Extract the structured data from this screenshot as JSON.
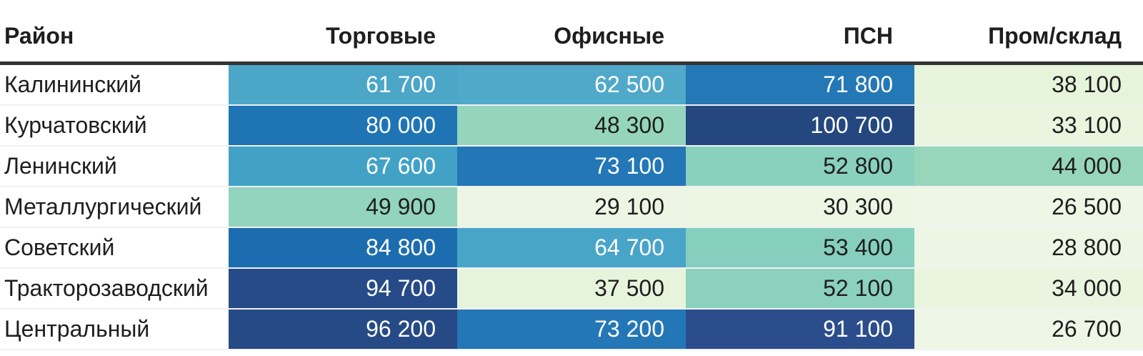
{
  "table": {
    "row_header_label": "Район",
    "column_labels": [
      "Торговые",
      "Офисные",
      "ПСН",
      "Пром/склад"
    ],
    "rows": [
      {
        "district": "Калининский",
        "cells": [
          {
            "text": "61 700",
            "bg": "#4BA6C8",
            "fg": "#FFFFFF"
          },
          {
            "text": "62 500",
            "bg": "#50A9C9",
            "fg": "#FFFFFF"
          },
          {
            "text": "71 800",
            "bg": "#2478B6",
            "fg": "#FFFFFF"
          },
          {
            "text": "38 100",
            "bg": "#E7F4DC",
            "fg": "#1E1E1E"
          }
        ]
      },
      {
        "district": "Курчатовский",
        "cells": [
          {
            "text": "80 000",
            "bg": "#1F74B4",
            "fg": "#FFFFFF"
          },
          {
            "text": "48 300",
            "bg": "#95D5BD",
            "fg": "#1E1E1E"
          },
          {
            "text": "100 700",
            "bg": "#24477F",
            "fg": "#FFFFFF"
          },
          {
            "text": "33 100",
            "bg": "#EAF5E0",
            "fg": "#1E1E1E"
          }
        ]
      },
      {
        "district": "Ленинский",
        "cells": [
          {
            "text": "67 600",
            "bg": "#42A2C6",
            "fg": "#FFFFFF"
          },
          {
            "text": "73 100",
            "bg": "#2377B6",
            "fg": "#FFFFFF"
          },
          {
            "text": "52 800",
            "bg": "#89D0BD",
            "fg": "#1E1E1E"
          },
          {
            "text": "44 000",
            "bg": "#98D6BC",
            "fg": "#1E1E1E"
          }
        ]
      },
      {
        "district": "Металлургический",
        "cells": [
          {
            "text": "49 900",
            "bg": "#92D4BE",
            "fg": "#1E1E1E"
          },
          {
            "text": "29 100",
            "bg": "#EDF6E4",
            "fg": "#1E1E1E"
          },
          {
            "text": "30 300",
            "bg": "#ECF6E2",
            "fg": "#1E1E1E"
          },
          {
            "text": "26 500",
            "bg": "#EEF7E6",
            "fg": "#1E1E1E"
          }
        ]
      },
      {
        "district": "Советский",
        "cells": [
          {
            "text": "84 800",
            "bg": "#1C6DAF",
            "fg": "#FFFFFF"
          },
          {
            "text": "64 700",
            "bg": "#48A5C8",
            "fg": "#FFFFFF"
          },
          {
            "text": "53 400",
            "bg": "#86CFBE",
            "fg": "#1E1E1E"
          },
          {
            "text": "28 800",
            "bg": "#EDF6E4",
            "fg": "#1E1E1E"
          }
        ]
      },
      {
        "district": "Тракторозаводский",
        "cells": [
          {
            "text": "94 700",
            "bg": "#274B88",
            "fg": "#FFFFFF"
          },
          {
            "text": "37 500",
            "bg": "#E7F4DC",
            "fg": "#1E1E1E"
          },
          {
            "text": "52 100",
            "bg": "#8BD1BD",
            "fg": "#1E1E1E"
          },
          {
            "text": "34 000",
            "bg": "#E9F5DF",
            "fg": "#1E1E1E"
          }
        ]
      },
      {
        "district": "Центральный",
        "cells": [
          {
            "text": "96 200",
            "bg": "#264A85",
            "fg": "#FFFFFF"
          },
          {
            "text": "73 200",
            "bg": "#2377B6",
            "fg": "#FFFFFF"
          },
          {
            "text": "91 100",
            "bg": "#2B4D8C",
            "fg": "#FFFFFF"
          },
          {
            "text": "26 700",
            "bg": "#EEF7E6",
            "fg": "#1E1E1E"
          }
        ]
      }
    ]
  },
  "style": {
    "header_border_color": "#343434",
    "row_divider_color": "#EFF1F2",
    "dark_text_color": "#1E1E1E",
    "light_text_color": "#FFFFFF",
    "colormap_low": "#EEF7E6",
    "colormap_mid": "#8FD2BD",
    "colormap_high": "#24477F"
  },
  "chart_data": {
    "type": "heatmap",
    "title": "",
    "row_header": "Район",
    "rows": [
      "Калининский",
      "Курчатовский",
      "Ленинский",
      "Металлургический",
      "Советский",
      "Тракторозаводский",
      "Центральный"
    ],
    "columns": [
      "Торговые",
      "Офисные",
      "ПСН",
      "Пром/склад"
    ],
    "values": [
      [
        61700,
        62500,
        71800,
        38100
      ],
      [
        80000,
        48300,
        100700,
        33100
      ],
      [
        67600,
        73100,
        52800,
        44000
      ],
      [
        49900,
        29100,
        30300,
        26500
      ],
      [
        84800,
        64700,
        53400,
        28800
      ],
      [
        94700,
        37500,
        52100,
        34000
      ],
      [
        96200,
        73200,
        91100,
        26700
      ]
    ],
    "value_range": [
      26500,
      100700
    ],
    "colormap": "light green (low) -> mint -> teal -> blue -> dark navy (high)",
    "legend": "none",
    "grid": "row dividers only"
  }
}
